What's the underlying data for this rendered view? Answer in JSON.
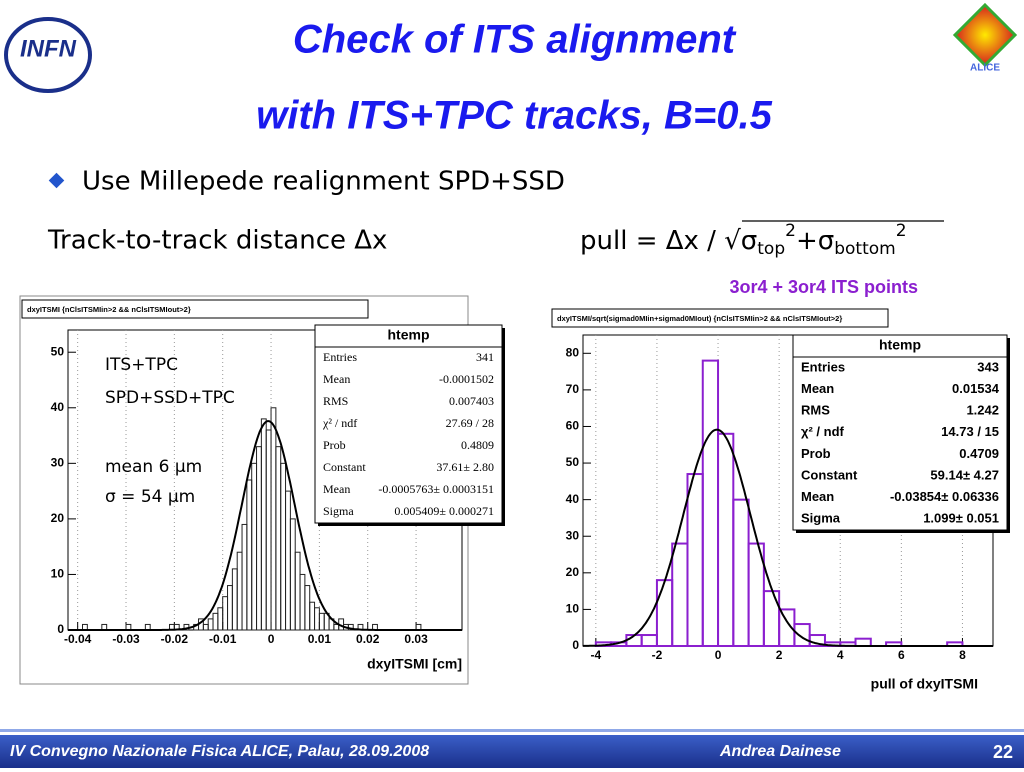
{
  "slide": {
    "logo_left": "INFN",
    "logo_right": "ALICE",
    "title_lines": [
      "Check of ITS alignment",
      "with ITS+TPC tracks, B=0.5"
    ],
    "bullet": "Use Millepede realignment SPD+SSD",
    "left_heading": "Track-to-track distance Δx",
    "right_heading": [
      "pull = Δx / √σ",
      "top",
      "2",
      "+σ",
      "bottom",
      "2"
    ],
    "right_note": "3or4 + 3or4 ITS points",
    "footer_left": "IV Convegno Nazionale Fisica ALICE, Palau, 28.09.2008",
    "footer_author": "Andrea Dainese",
    "page_number": "22"
  },
  "chart_data": [
    {
      "type": "histogram",
      "title": "dxyITSMI {nClsITSMIin>2 && nClsITSMIout>2}",
      "xlabel": "dxyITSMI [cm]",
      "bins": [
        -0.042,
        -0.041,
        -0.04,
        -0.039,
        -0.038,
        -0.037,
        -0.036,
        -0.035,
        -0.034,
        -0.033,
        -0.032,
        -0.031,
        -0.03,
        -0.029,
        -0.028,
        -0.027,
        -0.026,
        -0.025,
        -0.024,
        -0.023,
        -0.022,
        -0.021,
        -0.02,
        -0.019,
        -0.018,
        -0.017,
        -0.016,
        -0.015,
        -0.014,
        -0.013,
        -0.012,
        -0.011,
        -0.01,
        -0.009,
        -0.008,
        -0.007,
        -0.006,
        -0.005,
        -0.004,
        -0.003,
        -0.002,
        -0.001,
        0,
        0.001,
        0.002,
        0.003,
        0.004,
        0.005,
        0.006,
        0.007,
        0.008,
        0.009,
        0.01,
        0.011,
        0.012,
        0.013,
        0.014,
        0.015,
        0.016,
        0.017,
        0.018,
        0.019,
        0.02,
        0.021,
        0.022,
        0.023,
        0.024,
        0.025,
        0.026,
        0.027,
        0.028,
        0.029,
        0.03,
        0.031,
        0.032,
        0.033,
        0.034,
        0.035,
        0.036,
        0.037,
        0.038
      ],
      "values": [
        0,
        0,
        0,
        1,
        0,
        0,
        0,
        1,
        0,
        0,
        0,
        0,
        1,
        0,
        0,
        0,
        1,
        0,
        0,
        0,
        0,
        1,
        1,
        0,
        1,
        0,
        1,
        2,
        1,
        2,
        3,
        4,
        6,
        8,
        11,
        14,
        19,
        27,
        30,
        33,
        38,
        36,
        40,
        33,
        30,
        25,
        20,
        14,
        10,
        8,
        5,
        4,
        3,
        3,
        2,
        1,
        2,
        1,
        1,
        0,
        1,
        0,
        0,
        1,
        0,
        0,
        0,
        0,
        0,
        0,
        0,
        0,
        1,
        0,
        0,
        0,
        0,
        0,
        0,
        0
      ],
      "color": "#222222",
      "xlim": [
        -0.042,
        0.0395
      ],
      "ylim": [
        0,
        54
      ],
      "xticks": [
        -0.04,
        -0.03,
        -0.02,
        -0.01,
        0,
        0.01,
        0.02,
        0.03
      ],
      "yticks": [
        0,
        10,
        20,
        30,
        40,
        50
      ],
      "grid": "x",
      "stats": {
        "title": "htemp",
        "rows": [
          {
            "label": "Entries",
            "value": "341"
          },
          {
            "label": "Mean",
            "value": "-0.0001502"
          },
          {
            "label": "RMS",
            "value": "0.007403"
          },
          {
            "label": "χ² / ndf",
            "value": "27.69 / 28"
          },
          {
            "label": "Prob",
            "value": "0.4809"
          },
          {
            "label": "Constant",
            "value": "37.61± 2.80"
          },
          {
            "label": "Mean",
            "value": "-0.0005763± 0.0003151"
          },
          {
            "label": "Sigma",
            "value": "0.005409± 0.000271"
          }
        ]
      },
      "annotations": [
        "ITS+TPC",
        "SPD+SSD+TPC",
        "mean 6 μm",
        "σ = 54 μm"
      ]
    },
    {
      "type": "histogram",
      "title": "dxyITSMI/sqrt(sigmad0MIin+sigmad0MIout) {nClsITSMIin>2 && nClsITSMIout>2}",
      "xlabel": "pull of dxyITSMI",
      "bins": [
        -4,
        -3.5,
        -3,
        -2.5,
        -2,
        -1.5,
        -1,
        -0.5,
        0,
        0.5,
        1,
        1.5,
        2,
        2.5,
        3,
        3.5,
        4,
        4.5,
        5,
        5.5,
        6,
        6.5,
        7,
        7.5,
        8,
        8.5
      ],
      "values": [
        1,
        1,
        3,
        3,
        18,
        28,
        47,
        78,
        58,
        40,
        28,
        15,
        10,
        6,
        3,
        1,
        1,
        2,
        0,
        1,
        0,
        0,
        0,
        1,
        0
      ],
      "color": "#8b1fcf",
      "xlim": [
        -4.42,
        9.0
      ],
      "ylim": [
        0,
        85
      ],
      "xticks": [
        -4,
        -2,
        0,
        2,
        4,
        6,
        8
      ],
      "yticks": [
        0,
        10,
        20,
        30,
        40,
        50,
        60,
        70,
        80
      ],
      "grid": "x",
      "stats": {
        "title": "htemp",
        "rows": [
          {
            "label": "Entries",
            "value": "343"
          },
          {
            "label": "Mean",
            "value": "0.01534"
          },
          {
            "label": "RMS",
            "value": "1.242"
          },
          {
            "label": "χ² / ndf",
            "value": "14.73 / 15"
          },
          {
            "label": "Prob",
            "value": "0.4709"
          },
          {
            "label": "Constant",
            "value": "59.14± 4.27"
          },
          {
            "label": "Mean",
            "value": "-0.03854± 0.06336"
          },
          {
            "label": "Sigma",
            "value": "1.099± 0.051"
          }
        ]
      }
    }
  ]
}
